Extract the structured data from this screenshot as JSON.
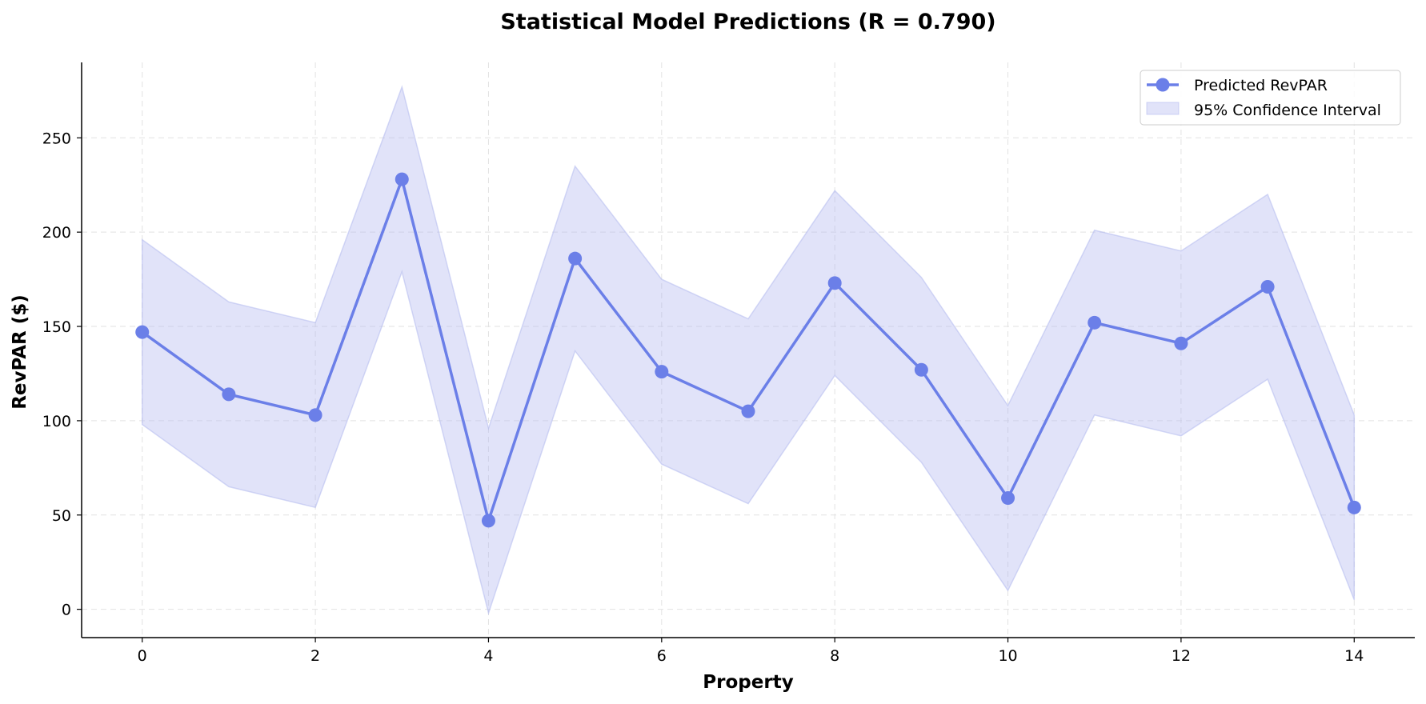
{
  "chart_data": {
    "type": "line",
    "title": "Statistical Model Predictions (R = 0.790)",
    "xlabel": "Property",
    "ylabel": "RevPAR ($)",
    "xlim": [
      -0.7,
      14.7
    ],
    "ylim": [
      -15,
      290
    ],
    "xticks": [
      0,
      2,
      4,
      6,
      8,
      10,
      12,
      14
    ],
    "yticks": [
      0,
      50,
      100,
      150,
      200,
      250
    ],
    "grid": true,
    "legend_position": "top-right",
    "x": [
      0,
      1,
      2,
      3,
      4,
      5,
      6,
      7,
      8,
      9,
      10,
      11,
      12,
      13,
      14
    ],
    "series": [
      {
        "name": "Predicted RevPAR",
        "values": [
          147,
          114,
          103,
          228,
          47,
          186,
          126,
          105,
          173,
          127,
          59,
          152,
          141,
          171,
          54
        ]
      }
    ],
    "confidence_interval": {
      "name": "95% Confidence Interval",
      "lower": [
        98,
        65,
        54,
        179,
        -2,
        137,
        77,
        56,
        124,
        78,
        10,
        103,
        92,
        122,
        5
      ],
      "upper": [
        196,
        163,
        152,
        277,
        96,
        235,
        175,
        154,
        222,
        176,
        108,
        201,
        190,
        220,
        103
      ]
    },
    "colors": {
      "line": "#6b7fe8",
      "band": "#b3b9ef",
      "grid": "#e2e2e2"
    }
  }
}
